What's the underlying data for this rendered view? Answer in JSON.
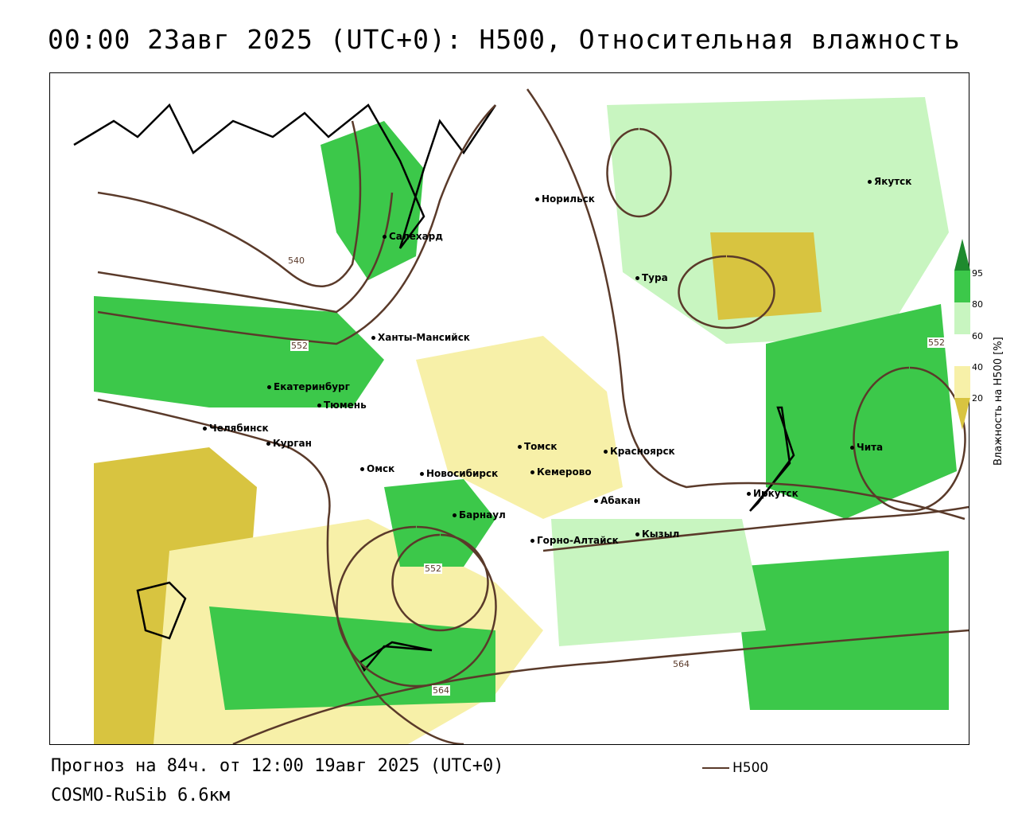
{
  "title": "00:00 23авг 2025 (UTC+0): H500, Относительная влажность",
  "forecast_line": "Прогноз на 84ч. от 12:00 19авг 2025 (UTC+0)",
  "model_line": "COSMO-RuSib 6.6км",
  "legend": {
    "label": "H500",
    "color": "#5a3a2a"
  },
  "colorbar": {
    "title": "Влажность на H500 [%]",
    "ticks": [
      "95",
      "80",
      "60",
      "40",
      "20"
    ],
    "colors": {
      "c95": "#1e8a2e",
      "c80": "#3cc84a",
      "c60": "#c8f5c0",
      "c40": "#ffffff",
      "c20": "#f7f0a8",
      "c0": "#d8c440"
    }
  },
  "cities": [
    {
      "name": "Норильск"
    },
    {
      "name": "Якутск"
    },
    {
      "name": "Салехард"
    },
    {
      "name": "Тура"
    },
    {
      "name": "Ханты-Мансийск"
    },
    {
      "name": "Екатеринбург"
    },
    {
      "name": "Тюмень"
    },
    {
      "name": "Челябинск"
    },
    {
      "name": "Курган"
    },
    {
      "name": "Омск"
    },
    {
      "name": "Новосибирск"
    },
    {
      "name": "Томск"
    },
    {
      "name": "Кемерово"
    },
    {
      "name": "Красноярск"
    },
    {
      "name": "Барнаул"
    },
    {
      "name": "Абакан"
    },
    {
      "name": "Горно-Алтайск"
    },
    {
      "name": "Кызыл"
    },
    {
      "name": "Иркутск"
    },
    {
      "name": "Чита"
    }
  ],
  "contour_labels": [
    "540",
    "552",
    "552",
    "552",
    "564",
    "564"
  ]
}
